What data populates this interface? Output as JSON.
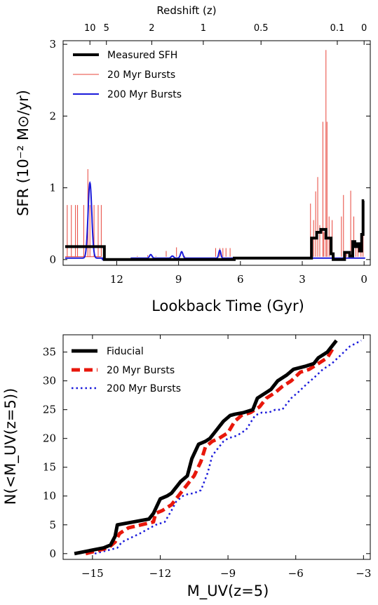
{
  "chart_data": [
    {
      "type": "line",
      "title": "",
      "xlabel": "Lookback Time (Gyr)",
      "ylabel": "SFR (10⁻² M⊙/yr)",
      "xlim": [
        14.6,
        -0.3
      ],
      "ylim": [
        -0.08,
        3.05
      ],
      "xticks": [
        12,
        9,
        6,
        3,
        0
      ],
      "yticks": [
        0,
        1,
        2,
        3
      ],
      "top_axis": {
        "label": "Redshift (z)",
        "ticks": [
          {
            "label": "10",
            "lookback": 13.3
          },
          {
            "label": "5",
            "lookback": 12.5
          },
          {
            "label": "2",
            "lookback": 10.3
          },
          {
            "label": "1",
            "lookback": 7.8
          },
          {
            "label": "0.5",
            "lookback": 5.0
          },
          {
            "label": "0.1",
            "lookback": 1.3
          },
          {
            "label": "0",
            "lookback": 0.0
          }
        ]
      },
      "legend": {
        "position": "top-left"
      },
      "series": [
        {
          "name": "Measured SFH",
          "color": "#000000",
          "style": "solid-thick",
          "x": [
            14.5,
            12.6,
            12.6,
            6.3,
            6.3,
            2.55,
            2.55,
            2.3,
            2.3,
            2.1,
            2.1,
            1.85,
            1.85,
            1.6,
            1.6,
            1.5,
            1.5,
            0.95,
            0.95,
            0.7,
            0.7,
            0.55,
            0.55,
            0.45,
            0.45,
            0.35,
            0.35,
            0.22,
            0.22,
            0.12,
            0.12,
            0.05,
            0.05,
            0.0
          ],
          "y": [
            0.18,
            0.18,
            0.0,
            0.0,
            0.02,
            0.02,
            0.3,
            0.3,
            0.38,
            0.38,
            0.42,
            0.42,
            0.3,
            0.3,
            0.08,
            0.08,
            0.0,
            0.0,
            0.1,
            0.1,
            0.05,
            0.05,
            0.25,
            0.25,
            0.18,
            0.18,
            0.22,
            0.22,
            0.12,
            0.12,
            0.35,
            0.35,
            0.82,
            0.82
          ]
        },
        {
          "name": "20 Myr Bursts",
          "color": "#e8443a",
          "style": "thin",
          "baseline": 0.04,
          "spikes": [
            {
              "x": 14.4,
              "y": 0.76
            },
            {
              "x": 14.2,
              "y": 0.76
            },
            {
              "x": 14.0,
              "y": 0.76
            },
            {
              "x": 13.9,
              "y": 0.76
            },
            {
              "x": 13.6,
              "y": 0.76
            },
            {
              "x": 13.4,
              "y": 1.26
            },
            {
              "x": 13.3,
              "y": 0.76
            },
            {
              "x": 13.1,
              "y": 0.76
            },
            {
              "x": 12.9,
              "y": 0.76
            },
            {
              "x": 12.75,
              "y": 0.76
            },
            {
              "x": 11.0,
              "y": 0.05
            },
            {
              "x": 10.5,
              "y": 0.06
            },
            {
              "x": 10.1,
              "y": 0.05
            },
            {
              "x": 9.6,
              "y": 0.12
            },
            {
              "x": 9.3,
              "y": 0.05
            },
            {
              "x": 9.1,
              "y": 0.17
            },
            {
              "x": 8.7,
              "y": 0.05
            },
            {
              "x": 7.2,
              "y": 0.16
            },
            {
              "x": 7.0,
              "y": 0.16
            },
            {
              "x": 6.85,
              "y": 0.16
            },
            {
              "x": 6.7,
              "y": 0.16
            },
            {
              "x": 6.5,
              "y": 0.16
            },
            {
              "x": 2.6,
              "y": 0.78
            },
            {
              "x": 2.45,
              "y": 0.55
            },
            {
              "x": 2.35,
              "y": 0.95
            },
            {
              "x": 2.25,
              "y": 1.15
            },
            {
              "x": 2.15,
              "y": 0.48
            },
            {
              "x": 2.0,
              "y": 1.92
            },
            {
              "x": 1.95,
              "y": 0.38
            },
            {
              "x": 1.85,
              "y": 2.92
            },
            {
              "x": 1.8,
              "y": 1.92
            },
            {
              "x": 1.7,
              "y": 0.6
            },
            {
              "x": 1.55,
              "y": 0.55
            },
            {
              "x": 1.1,
              "y": 0.6
            },
            {
              "x": 1.0,
              "y": 0.9
            },
            {
              "x": 0.85,
              "y": 0.1
            },
            {
              "x": 0.65,
              "y": 0.96
            },
            {
              "x": 0.5,
              "y": 0.6
            },
            {
              "x": 0.4,
              "y": 0.25
            },
            {
              "x": 0.3,
              "y": 0.2
            },
            {
              "x": 0.15,
              "y": 0.3
            },
            {
              "x": 0.05,
              "y": 0.55
            }
          ]
        },
        {
          "name": "200 Myr Bursts",
          "color": "#1a1adb",
          "style": "solid",
          "baseline": 0.02,
          "gaussians": [
            {
              "x": 13.3,
              "y": 1.05,
              "sigma": 0.09
            },
            {
              "x": 10.35,
              "y": 0.05,
              "sigma": 0.06
            },
            {
              "x": 9.3,
              "y": 0.03,
              "sigma": 0.06
            },
            {
              "x": 8.85,
              "y": 0.09,
              "sigma": 0.06
            },
            {
              "x": 7.0,
              "y": 0.11,
              "sigma": 0.05
            }
          ]
        }
      ]
    },
    {
      "type": "line",
      "title": "",
      "xlabel": "M_UV(z=5)",
      "ylabel": "N(<M_UV(z=5))",
      "xlim": [
        -16.3,
        -2.7
      ],
      "ylim": [
        -1,
        38
      ],
      "xticks": [
        -15,
        -12,
        -9,
        -6,
        -3
      ],
      "yticks": [
        0,
        5,
        10,
        15,
        20,
        25,
        30,
        35
      ],
      "legend": {
        "position": "top-left"
      },
      "series": [
        {
          "name": "Fiducial",
          "color": "#000000",
          "style": "solid-thick",
          "x": [
            -15.8,
            -14.5,
            -14.2,
            -14.0,
            -13.9,
            -12.5,
            -12.3,
            -12.0,
            -11.7,
            -11.5,
            -11.2,
            -11.1,
            -10.8,
            -10.6,
            -10.3,
            -10.0,
            -9.8,
            -9.6,
            -9.2,
            -8.9,
            -8.7,
            -8.3,
            -7.9,
            -7.7,
            -7.5,
            -7.1,
            -6.8,
            -6.4,
            -6.1,
            -5.6,
            -5.2,
            -5.0,
            -4.6,
            -4.2
          ],
          "y": [
            0,
            1,
            1.5,
            3,
            5,
            6,
            7,
            9.5,
            10,
            10.5,
            12,
            12.5,
            13.5,
            16.5,
            19,
            19.5,
            20,
            21,
            23,
            24,
            24.2,
            24.5,
            25,
            27,
            27.5,
            28.5,
            30,
            31,
            32,
            32.5,
            33,
            34,
            35,
            37
          ]
        },
        {
          "name": "20 Myr Bursts",
          "color": "#e8170b",
          "style": "dashed",
          "x": [
            -15.3,
            -14.3,
            -14.0,
            -13.8,
            -13.4,
            -12.3,
            -12.2,
            -11.9,
            -11.5,
            -11.3,
            -11.0,
            -10.8,
            -10.5,
            -10.2,
            -10.0,
            -9.7,
            -9.4,
            -9.0,
            -8.7,
            -8.4,
            -8.0,
            -7.6,
            -7.3,
            -6.9,
            -6.6,
            -6.2,
            -5.8,
            -5.4,
            -5.0,
            -4.6,
            -4.3
          ],
          "y": [
            0,
            1,
            2,
            3.5,
            4.5,
            5.5,
            7,
            7.5,
            8.5,
            9.5,
            11,
            12,
            13.5,
            16,
            18.5,
            19.5,
            20,
            21,
            23,
            24,
            24.5,
            25.5,
            27,
            28,
            29,
            30,
            31.5,
            32,
            33,
            34,
            36
          ]
        },
        {
          "name": "200 Myr Bursts",
          "color": "#1a1adb",
          "style": "dotted",
          "x": [
            -14.9,
            -13.9,
            -13.7,
            -12.9,
            -12.2,
            -11.8,
            -11.5,
            -11.3,
            -11.0,
            -10.8,
            -10.5,
            -10.2,
            -9.9,
            -9.7,
            -9.4,
            -9.2,
            -9.0,
            -8.6,
            -8.2,
            -7.8,
            -7.5,
            -7.2,
            -6.9,
            -6.6,
            -6.4,
            -6.2,
            -5.9,
            -5.5,
            -5.2,
            -4.8,
            -4.4,
            -4.0,
            -3.6,
            -3.1
          ],
          "y": [
            0,
            1,
            2,
            3.5,
            5,
            5.5,
            7.5,
            9,
            10,
            10.3,
            10.5,
            11,
            14,
            17,
            18.5,
            19.5,
            20,
            20.5,
            21.5,
            24,
            24.5,
            24.5,
            25,
            25,
            26,
            27,
            28,
            29.5,
            30.5,
            32,
            33,
            34.5,
            36,
            37
          ]
        }
      ]
    }
  ]
}
